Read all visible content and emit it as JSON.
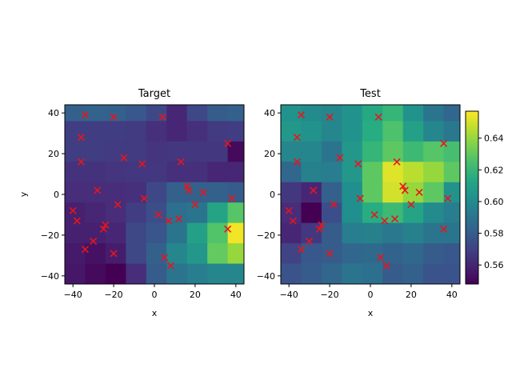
{
  "chart_data": [
    {
      "type": "heatmap",
      "title": "Target",
      "xlabel": "x",
      "ylabel": "y",
      "xlim": [
        -44,
        44
      ],
      "ylim": [
        -44,
        44
      ],
      "xticks": [
        -40,
        -20,
        0,
        20,
        40
      ],
      "yticks": [
        -40,
        -20,
        0,
        20,
        40
      ],
      "grid_edges": [
        -44,
        -34,
        -24,
        -14,
        -4,
        6,
        16,
        26,
        36,
        44
      ],
      "cells_top_to_bottom": [
        [
          0.582,
          0.583,
          0.582,
          0.578,
          0.572,
          0.56,
          0.572,
          0.58,
          0.582
        ],
        [
          0.568,
          0.568,
          0.568,
          0.567,
          0.563,
          0.56,
          0.563,
          0.567,
          0.568
        ],
        [
          0.568,
          0.568,
          0.567,
          0.567,
          0.565,
          0.566,
          0.566,
          0.566,
          0.551
        ],
        [
          0.564,
          0.564,
          0.565,
          0.566,
          0.566,
          0.563,
          0.563,
          0.56,
          0.56
        ],
        [
          0.562,
          0.562,
          0.562,
          0.563,
          0.572,
          0.582,
          0.582,
          0.582,
          0.58
        ],
        [
          0.558,
          0.56,
          0.562,
          0.568,
          0.574,
          0.588,
          0.59,
          0.612,
          0.628
        ],
        [
          0.558,
          0.558,
          0.56,
          0.572,
          0.577,
          0.59,
          0.61,
          0.627,
          0.655
        ],
        [
          0.556,
          0.553,
          0.557,
          0.572,
          0.582,
          0.598,
          0.606,
          0.631,
          0.64
        ],
        [
          0.555,
          0.551,
          0.548,
          0.562,
          0.58,
          0.59,
          0.594,
          0.598,
          0.598
        ]
      ],
      "points": [
        [
          -34,
          39
        ],
        [
          -20,
          38
        ],
        [
          4,
          38
        ],
        [
          -36,
          28
        ],
        [
          36,
          25
        ],
        [
          -15,
          18
        ],
        [
          -6,
          15
        ],
        [
          13,
          16
        ],
        [
          -36,
          16
        ],
        [
          -28,
          2
        ],
        [
          16,
          4
        ],
        [
          17,
          2
        ],
        [
          24,
          1
        ],
        [
          -5,
          -2
        ],
        [
          38,
          -2
        ],
        [
          -18,
          -5
        ],
        [
          20,
          -5
        ],
        [
          -40,
          -8
        ],
        [
          2,
          -10
        ],
        [
          -38,
          -13
        ],
        [
          7,
          -13
        ],
        [
          12,
          -12
        ],
        [
          -24,
          -15
        ],
        [
          -25,
          -17
        ],
        [
          36,
          -17
        ],
        [
          -30,
          -23
        ],
        [
          -34,
          -27
        ],
        [
          -20,
          -29
        ],
        [
          5,
          -31
        ],
        [
          8,
          -35
        ]
      ]
    },
    {
      "type": "heatmap",
      "title": "Test",
      "xlabel": "x",
      "ylabel": "",
      "xlim": [
        -44,
        44
      ],
      "ylim": [
        -44,
        44
      ],
      "xticks": [
        -40,
        -20,
        0,
        20,
        40
      ],
      "yticks": [
        -40,
        -20,
        0,
        20,
        40
      ],
      "grid_edges": [
        -44,
        -34,
        -24,
        -14,
        -4,
        6,
        16,
        26,
        36,
        44
      ],
      "cells_top_to_bottom": [
        [
          0.604,
          0.6,
          0.598,
          0.604,
          0.614,
          0.62,
          0.604,
          0.59,
          0.584
        ],
        [
          0.606,
          0.604,
          0.598,
          0.604,
          0.616,
          0.626,
          0.61,
          0.598,
          0.592
        ],
        [
          0.598,
          0.598,
          0.59,
          0.606,
          0.62,
          0.63,
          0.622,
          0.628,
          0.624
        ],
        [
          0.584,
          0.596,
          0.594,
          0.606,
          0.63,
          0.652,
          0.646,
          0.64,
          0.63
        ],
        [
          0.566,
          0.56,
          0.582,
          0.602,
          0.63,
          0.65,
          0.64,
          0.63,
          0.604
        ],
        [
          0.562,
          0.548,
          0.574,
          0.602,
          0.616,
          0.622,
          0.612,
          0.6,
          0.594
        ],
        [
          0.56,
          0.566,
          0.58,
          0.594,
          0.596,
          0.592,
          0.596,
          0.59,
          0.59
        ],
        [
          0.57,
          0.578,
          0.58,
          0.584,
          0.586,
          0.583,
          0.585,
          0.58,
          0.578
        ],
        [
          0.576,
          0.58,
          0.584,
          0.59,
          0.588,
          0.58,
          0.582,
          0.576,
          0.576
        ]
      ],
      "points": [
        [
          -34,
          39
        ],
        [
          -20,
          38
        ],
        [
          4,
          38
        ],
        [
          -36,
          28
        ],
        [
          36,
          25
        ],
        [
          -15,
          18
        ],
        [
          -6,
          15
        ],
        [
          13,
          16
        ],
        [
          -36,
          16
        ],
        [
          -28,
          2
        ],
        [
          16,
          4
        ],
        [
          17,
          2
        ],
        [
          24,
          1
        ],
        [
          -5,
          -2
        ],
        [
          38,
          -2
        ],
        [
          -18,
          -5
        ],
        [
          20,
          -5
        ],
        [
          -40,
          -8
        ],
        [
          2,
          -10
        ],
        [
          -38,
          -13
        ],
        [
          7,
          -13
        ],
        [
          12,
          -12
        ],
        [
          -24,
          -15
        ],
        [
          -25,
          -17
        ],
        [
          36,
          -17
        ],
        [
          -30,
          -23
        ],
        [
          -34,
          -27
        ],
        [
          -20,
          -29
        ],
        [
          5,
          -31
        ],
        [
          8,
          -35
        ]
      ]
    }
  ],
  "colorbar": {
    "colormap": "viridis",
    "vmin": 0.548,
    "vmax": 0.657,
    "ticks": [
      0.56,
      0.58,
      0.6,
      0.62,
      0.64
    ],
    "tick_labels": [
      "0.56",
      "0.58",
      "0.60",
      "0.62",
      "0.64"
    ]
  },
  "marker_color": "#e8151b"
}
